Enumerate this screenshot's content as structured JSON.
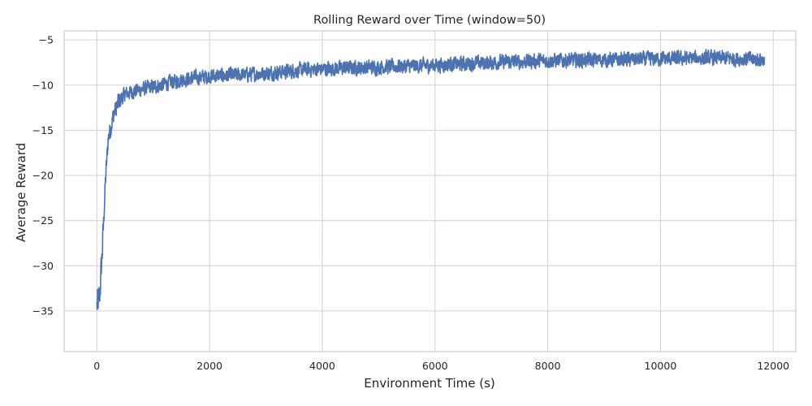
{
  "chart_data": {
    "type": "line",
    "title": "Rolling Reward over Time (window=50)",
    "xlabel": "Environment Time (s)",
    "ylabel": "Average Reward",
    "xlim": [
      -580,
      12400
    ],
    "ylim": [
      -39.5,
      -4.0
    ],
    "xticks": [
      0,
      2000,
      4000,
      6000,
      8000,
      10000,
      12000
    ],
    "xtick_labels": [
      "0",
      "2000",
      "4000",
      "6000",
      "8000",
      "10000",
      "12000"
    ],
    "yticks": [
      -35,
      -30,
      -25,
      -20,
      -15,
      -10,
      -5
    ],
    "ytick_labels": [
      "−35",
      "−30",
      "−25",
      "−20",
      "−15",
      "−10",
      "−5"
    ],
    "grid": true,
    "legend": "none",
    "line_color": "#4c72b0",
    "series": [
      {
        "x": [
          0,
          50,
          100,
          150,
          200,
          300,
          400,
          500,
          700,
          1000,
          1500,
          2000,
          2500,
          3000,
          3500,
          4000,
          5000,
          6000,
          7000,
          8000,
          9000,
          10000,
          11000,
          11850
        ],
        "y": [
          -34.5,
          -33.5,
          -28.0,
          -21.0,
          -16.0,
          -13.2,
          -11.8,
          -11.0,
          -10.6,
          -10.2,
          -9.4,
          -9.0,
          -8.9,
          -8.7,
          -8.4,
          -8.2,
          -8.0,
          -7.8,
          -7.5,
          -7.3,
          -7.2,
          -7.1,
          -7.0,
          -7.2
        ],
        "noise_amplitude": 1.1
      }
    ]
  }
}
